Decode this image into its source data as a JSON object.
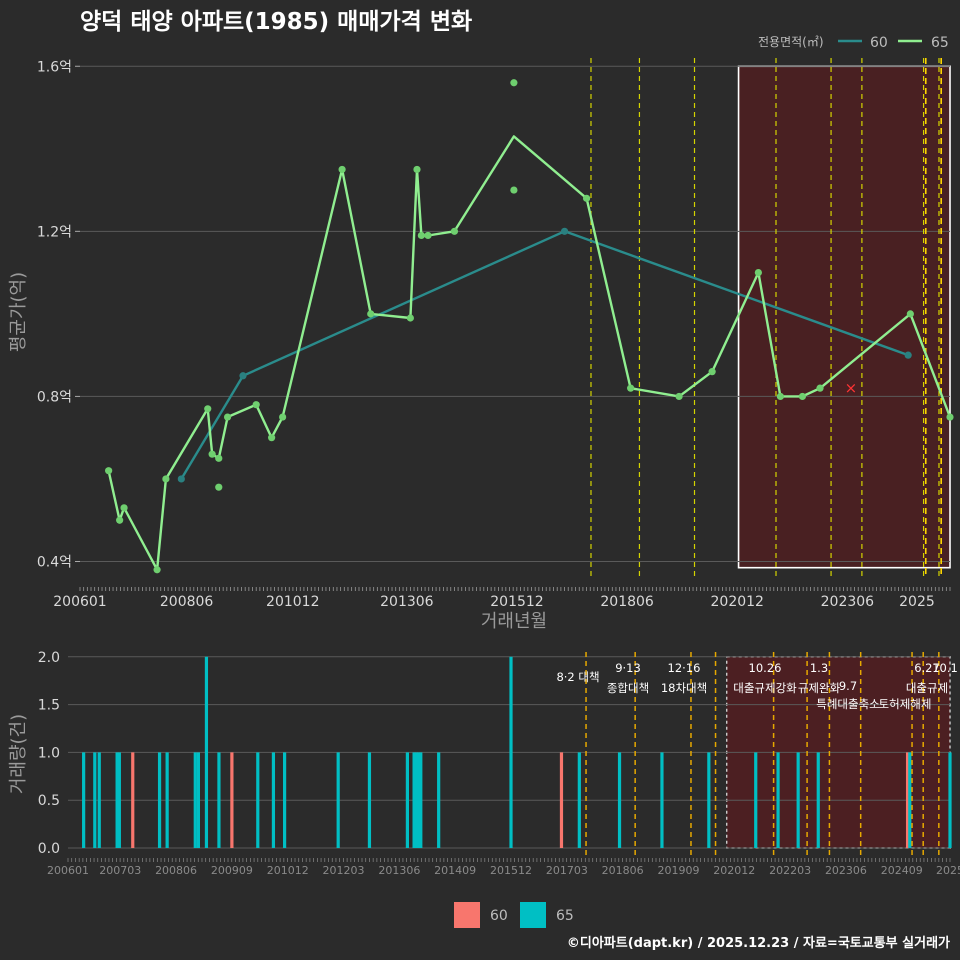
{
  "header": {
    "title": "양덕 태양 아파트(1985) 매매가격 변화"
  },
  "legend": {
    "area_label": "전용면적(㎡)",
    "series_60_color": "#2a8c8c",
    "series_65_color": "#90ee90",
    "bar_60_color": "#f8766d",
    "bar_65_color": "#00bfc4"
  },
  "caption": "©디아파트(dapt.kr) / 2025.12.23 / 자료=국토교통부 실거래가",
  "chart_data": [
    {
      "type": "line",
      "title": "양덕 태양 아파트(1985) 매매가격 변화",
      "xlabel": "거래년월",
      "ylabel": "평균가(억)",
      "xlim": [
        2006.0,
        2025.75
      ],
      "ylim": [
        0.36,
        1.62
      ],
      "y_ticks": [
        0.4,
        0.8,
        1.2,
        1.6
      ],
      "y_tick_labels": [
        "0.4억",
        "0.8억",
        "1.2억",
        "1.6억"
      ],
      "x_ticks": [
        2006.0,
        2008.42,
        2010.83,
        2013.42,
        2015.92,
        2018.42,
        2020.92,
        2023.42,
        2025.0
      ],
      "x_tick_labels": [
        "200601",
        "200806",
        "201012",
        "201306",
        "201512",
        "201806",
        "202012",
        "202306",
        "2025"
      ],
      "series": [
        {
          "name": "60",
          "points": [
            [
              2008.3,
              0.6
            ],
            [
              2009.7,
              0.85
            ],
            [
              2017.0,
              1.2
            ],
            [
              2024.8,
              0.9
            ]
          ],
          "scatter": [
            [
              2008.3,
              0.6
            ],
            [
              2009.7,
              0.85
            ],
            [
              2017.0,
              1.2
            ],
            [
              2024.8,
              0.9
            ]
          ]
        },
        {
          "name": "65",
          "points": [
            [
              2006.65,
              0.62
            ],
            [
              2006.9,
              0.5
            ],
            [
              2007.0,
              0.53
            ],
            [
              2007.75,
              0.38
            ],
            [
              2007.95,
              0.6
            ],
            [
              2008.9,
              0.77
            ],
            [
              2009.0,
              0.66
            ],
            [
              2009.15,
              0.65
            ],
            [
              2009.35,
              0.75
            ],
            [
              2010.0,
              0.78
            ],
            [
              2010.35,
              0.7
            ],
            [
              2010.6,
              0.75
            ],
            [
              2011.95,
              1.35
            ],
            [
              2012.6,
              1.0
            ],
            [
              2013.5,
              0.99
            ],
            [
              2013.65,
              1.35
            ],
            [
              2013.75,
              1.19
            ],
            [
              2013.9,
              1.19
            ],
            [
              2014.5,
              1.2
            ],
            [
              2015.85,
              1.43
            ],
            [
              2017.5,
              1.28
            ],
            [
              2018.5,
              0.82
            ],
            [
              2019.6,
              0.8
            ],
            [
              2020.35,
              0.86
            ],
            [
              2021.4,
              1.1
            ],
            [
              2021.9,
              0.8
            ],
            [
              2022.4,
              0.8
            ],
            [
              2022.8,
              0.82
            ],
            [
              2024.85,
              1.0
            ],
            [
              2025.75,
              0.75
            ]
          ],
          "scatter": [
            [
              2006.65,
              0.62
            ],
            [
              2006.9,
              0.5
            ],
            [
              2007.0,
              0.53
            ],
            [
              2007.75,
              0.38
            ],
            [
              2007.95,
              0.6
            ],
            [
              2008.9,
              0.77
            ],
            [
              2009.0,
              0.66
            ],
            [
              2009.15,
              0.65
            ],
            [
              2009.15,
              0.58
            ],
            [
              2009.35,
              0.75
            ],
            [
              2010.0,
              0.78
            ],
            [
              2010.35,
              0.7
            ],
            [
              2010.6,
              0.75
            ],
            [
              2011.95,
              1.35
            ],
            [
              2012.6,
              1.0
            ],
            [
              2013.5,
              0.99
            ],
            [
              2013.65,
              1.35
            ],
            [
              2013.75,
              1.19
            ],
            [
              2013.9,
              1.19
            ],
            [
              2014.5,
              1.2
            ],
            [
              2015.85,
              1.3
            ],
            [
              2015.85,
              1.56
            ],
            [
              2017.5,
              1.28
            ],
            [
              2018.5,
              0.82
            ],
            [
              2019.6,
              0.8
            ],
            [
              2020.35,
              0.86
            ],
            [
              2021.4,
              1.1
            ],
            [
              2021.9,
              0.8
            ],
            [
              2022.4,
              0.8
            ],
            [
              2022.8,
              0.82
            ],
            [
              2024.85,
              1.0
            ],
            [
              2025.75,
              0.75
            ]
          ]
        }
      ],
      "special_marker": {
        "x": 2023.5,
        "y": 0.82,
        "symbol": "×",
        "color": "#ff3333"
      },
      "policy_lines_yellow": [
        2017.6,
        2018.7,
        2019.95,
        2021.8,
        2023.05,
        2023.75,
        2025.15,
        2025.5
      ],
      "policy_lines_gold": [
        2025.2,
        2025.55
      ],
      "highlight_range": {
        "x": [
          2020.95,
          2025.75
        ],
        "y": [
          0.385,
          1.6
        ]
      }
    },
    {
      "type": "bar",
      "ylabel": "거래량(건)",
      "xlim": [
        2006.0,
        2025.75
      ],
      "ylim": [
        0,
        2.05
      ],
      "y_ticks": [
        0,
        0.5,
        1,
        1.5,
        2
      ],
      "y_tick_labels": [
        "0.0",
        "0.5",
        "1.0",
        "1.5",
        "2.0"
      ],
      "x_ticks": [
        2006.0,
        2007.17,
        2008.42,
        2009.67,
        2010.92,
        2012.17,
        2013.42,
        2014.67,
        2015.92,
        2017.17,
        2018.42,
        2019.67,
        2020.92,
        2022.17,
        2023.42,
        2024.67,
        2025.75
      ],
      "x_tick_labels": [
        "200601",
        "200703",
        "200806",
        "200909",
        "201012",
        "201203",
        "201306",
        "201409",
        "201512",
        "201703",
        "201806",
        "201909",
        "202012",
        "202203",
        "202306",
        "202409",
        "2025"
      ],
      "series": [
        {
          "name": "60",
          "bars": [
            [
              2007.45,
              1
            ],
            [
              2009.67,
              1
            ],
            [
              2017.05,
              1
            ],
            [
              2024.8,
              1
            ]
          ]
        },
        {
          "name": "65",
          "bars": [
            [
              2006.35,
              1
            ],
            [
              2006.6,
              1
            ],
            [
              2006.7,
              1
            ],
            [
              2007.1,
              1
            ],
            [
              2007.15,
              1
            ],
            [
              2008.05,
              1
            ],
            [
              2008.22,
              1
            ],
            [
              2008.85,
              1
            ],
            [
              2008.92,
              1
            ],
            [
              2009.1,
              2
            ],
            [
              2009.38,
              1
            ],
            [
              2010.25,
              1
            ],
            [
              2010.6,
              1
            ],
            [
              2010.85,
              1
            ],
            [
              2012.05,
              1
            ],
            [
              2012.75,
              1
            ],
            [
              2013.6,
              1
            ],
            [
              2013.75,
              1
            ],
            [
              2013.8,
              1
            ],
            [
              2013.85,
              1
            ],
            [
              2013.9,
              1
            ],
            [
              2014.3,
              1
            ],
            [
              2015.92,
              2
            ],
            [
              2017.45,
              1
            ],
            [
              2018.35,
              1
            ],
            [
              2019.3,
              1
            ],
            [
              2020.35,
              1
            ],
            [
              2021.4,
              1
            ],
            [
              2021.9,
              1
            ],
            [
              2022.35,
              1
            ],
            [
              2022.8,
              1
            ],
            [
              2024.85,
              1
            ],
            [
              2025.75,
              1
            ]
          ]
        }
      ],
      "policy_lines": [
        2017.6,
        2018.7,
        2019.95,
        2020.5,
        2021.8,
        2022.55,
        2023.05,
        2023.75,
        2024.9,
        2025.15,
        2025.5
      ],
      "annotations": [
        {
          "date": "8·2 대책",
          "label": ""
        },
        {
          "date": "9·13",
          "label": "종합대책"
        },
        {
          "date": "12·16",
          "label": "18차대책"
        },
        {
          "date": "10.26",
          "label": "대출규제강화"
        },
        {
          "date": "1.3",
          "label": "규제완화"
        },
        {
          "date": "9.7",
          "label": "특례대출축소"
        },
        {
          "date": "",
          "label": "토허제해제"
        },
        {
          "date": "6.27",
          "label": "대출규제"
        },
        {
          "date": "10.1",
          "label": ""
        }
      ],
      "highlight_range": {
        "x": [
          2020.75,
          2025.75
        ],
        "y": [
          0,
          2.0
        ]
      }
    }
  ]
}
